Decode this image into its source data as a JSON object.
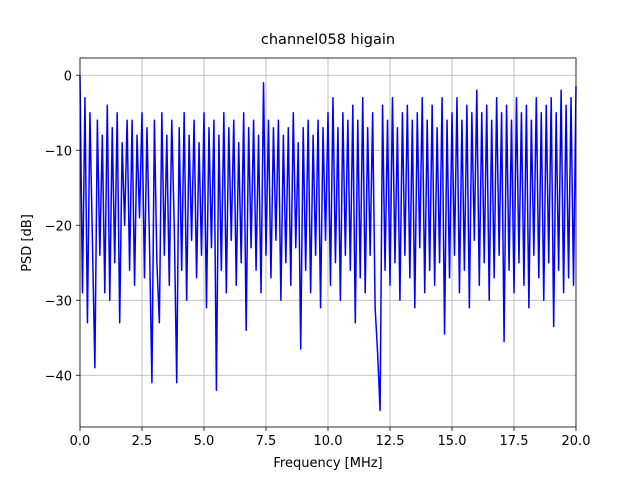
{
  "chart_data": {
    "type": "line",
    "title": "channel058 higain",
    "xlabel": "Frequency [MHz]",
    "ylabel": "PSD [dB]",
    "xlim": [
      0,
      20
    ],
    "ylim": [
      -46.9,
      2.3
    ],
    "xticks": [
      {
        "value": 0,
        "label": "0.0"
      },
      {
        "value": 2.5,
        "label": "2.5"
      },
      {
        "value": 5,
        "label": "5.0"
      },
      {
        "value": 7.5,
        "label": "7.5"
      },
      {
        "value": 10,
        "label": "10.0"
      },
      {
        "value": 12.5,
        "label": "12.5"
      },
      {
        "value": 15,
        "label": "15.0"
      },
      {
        "value": 17.5,
        "label": "17.5"
      },
      {
        "value": 20,
        "label": "20.0"
      }
    ],
    "yticks": [
      {
        "value": 0,
        "label": "0"
      },
      {
        "value": -10,
        "label": "−10"
      },
      {
        "value": -20,
        "label": "−20"
      },
      {
        "value": -30,
        "label": "−30"
      },
      {
        "value": -40,
        "label": "−40"
      }
    ],
    "grid": true,
    "x": [
      0,
      0.1,
      0.2,
      0.3,
      0.4,
      0.5,
      0.6,
      0.7,
      0.8,
      0.9,
      1,
      1.1,
      1.2,
      1.3,
      1.4,
      1.5,
      1.6,
      1.7,
      1.8,
      1.9,
      2,
      2.1,
      2.2,
      2.3,
      2.4,
      2.5,
      2.6,
      2.7,
      2.8,
      2.9,
      3,
      3.1,
      3.2,
      3.3,
      3.4,
      3.5,
      3.6,
      3.7,
      3.8,
      3.9,
      4,
      4.1,
      4.2,
      4.3,
      4.4,
      4.5,
      4.6,
      4.7,
      4.8,
      4.9,
      5,
      5.1,
      5.2,
      5.3,
      5.4,
      5.5,
      5.6,
      5.7,
      5.8,
      5.9,
      6,
      6.1,
      6.2,
      6.3,
      6.4,
      6.5,
      6.6,
      6.7,
      6.8,
      6.9,
      7,
      7.1,
      7.2,
      7.3,
      7.4,
      7.5,
      7.6,
      7.7,
      7.8,
      7.9,
      8,
      8.1,
      8.2,
      8.3,
      8.4,
      8.5,
      8.6,
      8.7,
      8.8,
      8.9,
      9,
      9.1,
      9.2,
      9.3,
      9.4,
      9.5,
      9.6,
      9.7,
      9.8,
      9.9,
      10,
      10.1,
      10.2,
      10.3,
      10.4,
      10.5,
      10.6,
      10.7,
      10.8,
      10.9,
      11,
      11.1,
      11.2,
      11.3,
      11.4,
      11.5,
      11.6,
      11.7,
      11.8,
      11.9,
      12,
      12.1,
      12.2,
      12.3,
      12.4,
      12.5,
      12.6,
      12.7,
      12.8,
      12.9,
      13,
      13.1,
      13.2,
      13.3,
      13.4,
      13.5,
      13.6,
      13.7,
      13.8,
      13.9,
      14,
      14.1,
      14.2,
      14.3,
      14.4,
      14.5,
      14.6,
      14.7,
      14.8,
      14.9,
      15,
      15.1,
      15.2,
      15.3,
      15.4,
      15.5,
      15.6,
      15.7,
      15.8,
      15.9,
      16,
      16.1,
      16.2,
      16.3,
      16.4,
      16.5,
      16.6,
      16.7,
      16.8,
      16.9,
      17,
      17.1,
      17.2,
      17.3,
      17.4,
      17.5,
      17.6,
      17.7,
      17.8,
      17.9,
      18,
      18.1,
      18.2,
      18.3,
      18.4,
      18.5,
      18.6,
      18.7,
      18.8,
      18.9,
      19,
      19.1,
      19.2,
      19.3,
      19.4,
      19.5,
      19.6,
      19.7,
      19.8,
      19.9,
      20
    ],
    "series": [
      {
        "color": "#0000ff",
        "values": [
          0,
          -29,
          -3,
          -33,
          -5,
          -22,
          -39,
          -6,
          -24,
          -8,
          -29,
          -4,
          -30,
          -7,
          -25,
          -5,
          -33,
          -9,
          -20,
          -6,
          -26,
          -6,
          -28,
          -8,
          -19,
          -5,
          -27,
          -7,
          -22,
          -41,
          -6,
          -25,
          -33,
          -5,
          -24,
          -8,
          -28,
          -6,
          -20,
          -41,
          -7,
          -26,
          -5,
          -30,
          -8,
          -22,
          -6,
          -27,
          -9,
          -24,
          -5,
          -31,
          -7,
          -23,
          -6,
          -42,
          -8,
          -26,
          -5,
          -29,
          -7,
          -22,
          -6,
          -28,
          -9,
          -25,
          -5,
          -34,
          -7,
          -23,
          -6,
          -26,
          -8,
          -29,
          -1,
          -24,
          -6,
          -27,
          -7,
          -22,
          -6,
          -30,
          -8,
          -25,
          -7,
          -28,
          -5,
          -23,
          -9,
          -36.5,
          -7,
          -26,
          -6,
          -29,
          -8,
          -24,
          -6,
          -31,
          -7,
          -22,
          -5,
          -28,
          -3,
          -25,
          -7,
          -30,
          -5,
          -24,
          -6,
          -26,
          -4,
          -33,
          -6,
          -27,
          -3,
          -29,
          -7,
          -24,
          -5,
          -31,
          -37,
          -44.7,
          -4,
          -26,
          -6,
          -28,
          -3,
          -25,
          -7,
          -30,
          -5,
          -24,
          -4,
          -27,
          -6,
          -31,
          -5,
          -23,
          -3,
          -29,
          -6,
          -26,
          -4,
          -28,
          -7,
          -25,
          -3,
          -34.5,
          -6,
          -27,
          -5,
          -24,
          -3,
          -29,
          -6,
          -26,
          -4,
          -31,
          -5,
          -22,
          -2,
          -28,
          -5,
          -25,
          -4,
          -30,
          -6,
          -27,
          -3,
          -24,
          -5,
          -35.5,
          -4,
          -26,
          -6,
          -29,
          -3,
          -25,
          -5,
          -28,
          -4,
          -31,
          -6,
          -24,
          -3,
          -27,
          -5,
          -30,
          -4,
          -25,
          -3,
          -33.5,
          -5,
          -26,
          -2,
          -29,
          -4,
          -27,
          -3,
          -28,
          -1.5
        ]
      }
    ]
  }
}
